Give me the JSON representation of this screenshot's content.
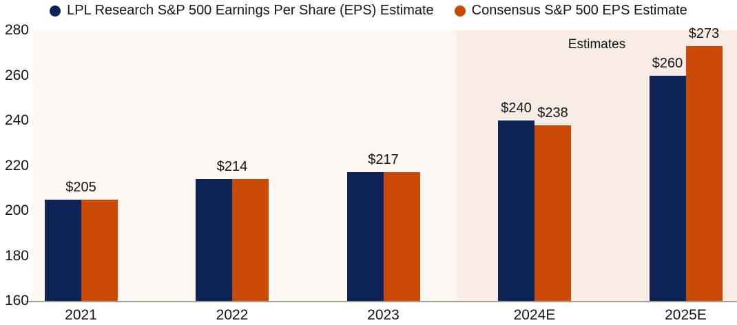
{
  "colors": {
    "lpl_navy": "#0e2356",
    "consensus_orange": "#cc4a08",
    "plot_bg": "#fdf7f3",
    "estimates_bg": "#f8ece4",
    "axis_line": "#a39f9a",
    "text": "#141414"
  },
  "legend": {
    "items": [
      {
        "label": "LPL Research S&P 500 Earnings Per Share (EPS) Estimate",
        "color_key": "lpl_navy"
      },
      {
        "label": "Consensus S&P 500 EPS Estimate",
        "color_key": "consensus_orange"
      }
    ]
  },
  "chart_data": {
    "type": "bar",
    "title": "",
    "categories": [
      "2021",
      "2022",
      "2023",
      "2024E",
      "2025E"
    ],
    "series": [
      {
        "name": "LPL Research S&P 500 Earnings Per Share (EPS) Estimate",
        "color_key": "lpl_navy",
        "values": [
          205,
          214,
          217,
          240,
          260
        ]
      },
      {
        "name": "Consensus S&P 500 EPS Estimate",
        "color_key": "consensus_orange",
        "values": [
          205,
          214,
          217,
          238,
          273
        ]
      }
    ],
    "bar_labels": [
      {
        "texts": [
          "$205"
        ],
        "placement": "group"
      },
      {
        "texts": [
          "$214"
        ],
        "placement": "group"
      },
      {
        "texts": [
          "$217"
        ],
        "placement": "group"
      },
      {
        "texts": [
          "$240",
          "$238"
        ],
        "placement": "per-bar"
      },
      {
        "texts": [
          "$260",
          "$273"
        ],
        "placement": "per-bar"
      }
    ],
    "ylim": [
      160,
      280
    ],
    "yticks": [
      "160",
      "180",
      "200",
      "220",
      "240",
      "260",
      "280"
    ],
    "xlabel": "",
    "ylabel": "",
    "grid": false,
    "legend_position": "top",
    "annotation": "Estimates",
    "estimates_region": {
      "start_category": "2024E",
      "label": "Estimates"
    }
  }
}
